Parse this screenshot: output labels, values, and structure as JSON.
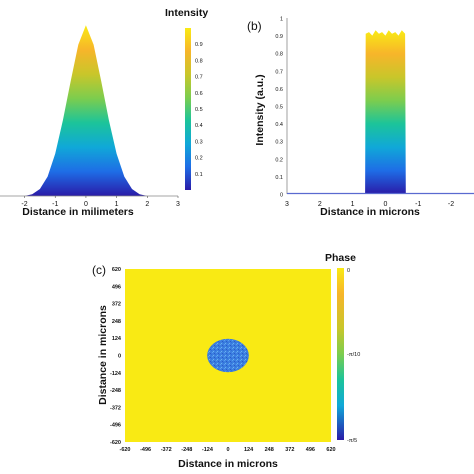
{
  "colors": {
    "jet": [
      "#2a1ba8",
      "#1e6de6",
      "#10a8d8",
      "#1cc49a",
      "#7ccd4e",
      "#c9c62a",
      "#f7b52a",
      "#f9ea14"
    ]
  },
  "chart_data": [
    {
      "id": "a",
      "type": "area",
      "panel_label": "",
      "xlabel": "Distance in milimeters",
      "ylabel": "",
      "x_ticks": [
        "-2",
        "-1",
        "0",
        "1",
        "2",
        "3"
      ],
      "xlim": [
        -2.8,
        3.0
      ],
      "ylim": [
        0,
        1.0
      ],
      "series": [
        {
          "x": [
            -2.0,
            -1.75,
            -1.5,
            -1.25,
            -1.0,
            -0.75,
            -0.5,
            -0.25,
            0.0,
            0.25,
            0.5,
            0.75,
            1.0,
            1.25,
            1.5,
            1.75,
            2.0
          ],
          "values": [
            0.0,
            0.01,
            0.04,
            0.11,
            0.24,
            0.43,
            0.65,
            0.86,
            0.97,
            0.86,
            0.65,
            0.43,
            0.24,
            0.11,
            0.04,
            0.01,
            0.0
          ]
        }
      ],
      "colorbar": {
        "title": "Intensity",
        "ticks": [
          "0.9",
          "0.8",
          "0.7",
          "0.6",
          "0.5",
          "0.4",
          "0.3",
          "0.2",
          "0.1"
        ],
        "range": [
          0,
          1
        ]
      }
    },
    {
      "id": "b",
      "type": "area",
      "panel_label": "(b)",
      "xlabel": "Distance in microns",
      "ylabel": "Intensity (a.u.)",
      "x_ticks": [
        "3",
        "2",
        "1",
        "0",
        "-1",
        "-2"
      ],
      "x_reversed": true,
      "xlim": [
        3.0,
        -2.7
      ],
      "y_ticks": [
        "0",
        "0.1",
        "0.2",
        "0.3",
        "0.4",
        "0.5",
        "0.6",
        "0.7",
        "0.8",
        "0.9",
        "1"
      ],
      "ylim": [
        0,
        1.0
      ],
      "series": [
        {
          "x": [
            3.0,
            0.62,
            0.6,
            0.5,
            0.4,
            0.3,
            0.2,
            0.1,
            0.0,
            -0.1,
            -0.2,
            -0.3,
            -0.4,
            -0.5,
            -0.6,
            -0.62,
            -2.7
          ],
          "values": [
            0.0,
            0.0,
            0.91,
            0.92,
            0.9,
            0.93,
            0.91,
            0.92,
            0.9,
            0.93,
            0.91,
            0.92,
            0.9,
            0.93,
            0.91,
            0.0,
            0.0
          ]
        }
      ]
    },
    {
      "id": "c",
      "type": "heatmap",
      "panel_label": "(c)",
      "xlabel": "Distance in microns",
      "ylabel": "Distance in microns",
      "x_ticks": [
        "-620",
        "-496",
        "-372",
        "-248",
        "-124",
        "0",
        "124",
        "248",
        "372",
        "496",
        "620"
      ],
      "y_ticks": [
        "620",
        "496",
        "372",
        "248",
        "124",
        "0",
        "-124",
        "-248",
        "-372",
        "-496",
        "-620"
      ],
      "xlim": [
        -620,
        620
      ],
      "ylim": [
        -620,
        620
      ],
      "background_phase": "0",
      "disk": {
        "center_x": 0,
        "center_y": 0,
        "radius_x": 124,
        "radius_y": 118,
        "phase": "-π/5"
      },
      "colorbar": {
        "title": "Phase",
        "ticks": [
          "0",
          "-π/10",
          "-π/5"
        ]
      }
    }
  ]
}
